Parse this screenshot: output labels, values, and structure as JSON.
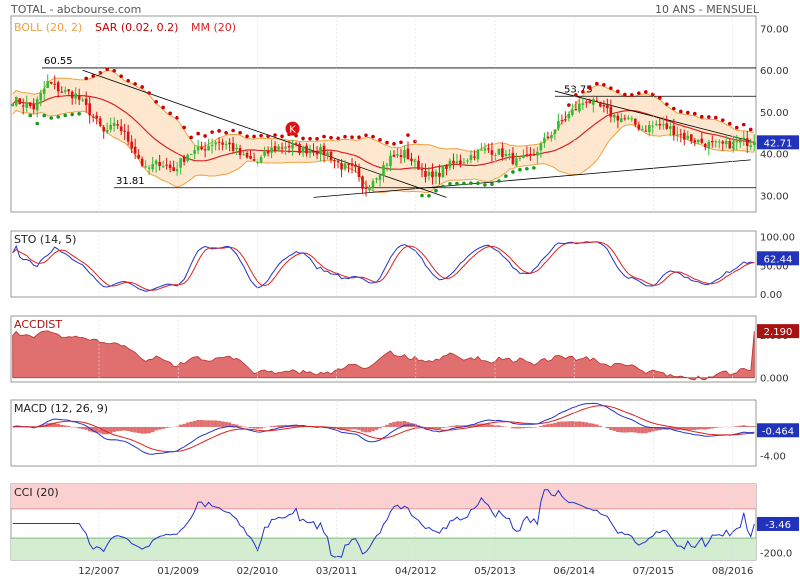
{
  "header": {
    "left": "TOTAL - abcbourse.com",
    "right": "10 ANS - MENSUEL"
  },
  "colors": {
    "bb_fill": "#fde8cf",
    "bb_line": "#f0a040",
    "sar": "#cc0000",
    "sar_low": "#1a9a1a",
    "mm": "#dd2222",
    "up": "#33bb33",
    "down": "#dd1111",
    "blue": "#2233cc",
    "red": "#dd2222",
    "acc_fill": "#e07070",
    "acc_line": "#b83030",
    "macd_hist": "#e07070",
    "cci_hi": "#fbd0d0",
    "cci_lo": "#d4ecd0",
    "cci": "#2233cc",
    "label_bg": "#2233bb"
  },
  "chart_data": [
    {
      "type": "candlestick",
      "title": "",
      "legend": [
        "BOLL (20, 2)",
        "SAR (0.02, 0.2)",
        "MM (20)"
      ],
      "y_ticks": [
        "30.00",
        "40.00",
        "50.00",
        "60.00",
        "70.00"
      ],
      "ylim": [
        26,
        73
      ],
      "last_value": "42.71",
      "marker": "K",
      "annotations": [
        {
          "text": "60.55",
          "value": 60.55
        },
        {
          "text": "31.81",
          "value": 31.81
        },
        {
          "text": "53.75",
          "value": 53.75
        }
      ],
      "x_labels": [
        "12/2007",
        "01/2009",
        "02/2010",
        "03/2011",
        "04/2012",
        "05/2013",
        "06/2014",
        "07/2015",
        "08/2016"
      ],
      "close_anchors": [
        [
          0,
          53
        ],
        [
          6,
          51
        ],
        [
          10,
          57
        ],
        [
          14,
          55
        ],
        [
          18,
          54
        ],
        [
          22,
          50
        ],
        [
          26,
          45
        ],
        [
          30,
          47
        ],
        [
          34,
          42
        ],
        [
          38,
          36
        ],
        [
          42,
          38
        ],
        [
          46,
          36
        ],
        [
          50,
          40
        ],
        [
          54,
          41
        ],
        [
          58,
          43
        ],
        [
          62,
          42
        ],
        [
          66,
          39
        ],
        [
          70,
          38
        ],
        [
          74,
          41
        ],
        [
          78,
          42
        ],
        [
          82,
          41
        ],
        [
          86,
          41
        ],
        [
          90,
          40
        ],
        [
          94,
          37
        ],
        [
          98,
          36
        ],
        [
          100,
          31
        ],
        [
          104,
          35
        ],
        [
          108,
          39
        ],
        [
          112,
          40
        ],
        [
          116,
          37
        ],
        [
          120,
          34
        ],
        [
          124,
          37
        ],
        [
          128,
          38
        ],
        [
          132,
          40
        ],
        [
          136,
          41
        ],
        [
          140,
          40
        ],
        [
          144,
          38
        ],
        [
          148,
          39
        ],
        [
          152,
          43
        ],
        [
          156,
          47
        ],
        [
          160,
          50
        ],
        [
          164,
          53
        ],
        [
          168,
          51
        ],
        [
          172,
          49
        ],
        [
          176,
          48
        ],
        [
          180,
          46
        ],
        [
          184,
          47
        ],
        [
          188,
          46
        ],
        [
          192,
          44
        ],
        [
          196,
          43
        ],
        [
          200,
          42
        ],
        [
          204,
          42
        ],
        [
          208,
          43
        ],
        [
          212,
          42.7
        ]
      ]
    },
    {
      "type": "line",
      "title": "STO (14, 5)",
      "y_ticks": [
        "0.00",
        "50.00",
        "100.00"
      ],
      "ylim": [
        -5,
        110
      ],
      "last_value": "62.44"
    },
    {
      "type": "area",
      "title": "ACCDIST",
      "y_ticks": [
        "0.000",
        "2.000"
      ],
      "ylim": [
        -0.2,
        2.9
      ],
      "last_value": "2.190"
    },
    {
      "type": "line",
      "title": "MACD (12, 26, 9)",
      "y_ticks": [
        "-4.00"
      ],
      "ylim": [
        -5.5,
        3.8
      ],
      "last_value": "-0.464"
    },
    {
      "type": "line",
      "title": "CCI (20)",
      "y_ticks": [
        "-200.0"
      ],
      "ylim": [
        -250,
        270
      ],
      "last_value": "-3.46"
    }
  ]
}
